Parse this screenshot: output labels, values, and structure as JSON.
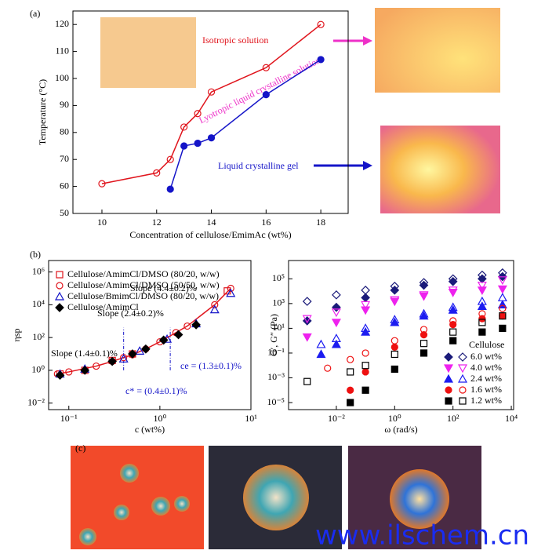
{
  "figure": {
    "panel_a": "(a)",
    "panel_b": "(b)",
    "panel_c": "(c)",
    "watermark": "www.ilschem.cn"
  },
  "chart_data": [
    {
      "type": "line",
      "xlabel": "Concentration of cellulose/EmimAc (wt%)",
      "ylabel": "Temperature (°C)",
      "xlim": [
        8.94,
        19
      ],
      "xticks": [
        10,
        12,
        14,
        16,
        18
      ],
      "ylim": [
        50,
        125
      ],
      "yticks": [
        50,
        60,
        70,
        80,
        90,
        100,
        110,
        120
      ],
      "annotations": [
        "Isotropic solution",
        "Lyotropic liquid crystalline solution",
        "Liquid crystalline gel"
      ],
      "series": [
        {
          "color": "#e0141c",
          "marker": "circle-open",
          "line": true,
          "x": [
            10,
            12,
            12.5,
            13,
            13.5,
            14,
            16,
            18
          ],
          "values": [
            61,
            65,
            70,
            82,
            87,
            95,
            104,
            120
          ]
        },
        {
          "color": "#1414c8",
          "marker": "circle",
          "line": true,
          "x": [
            12.5,
            13,
            13.5,
            14,
            16,
            18
          ],
          "values": [
            59,
            75,
            76,
            78,
            94,
            107
          ]
        }
      ]
    },
    {
      "type": "scatter",
      "log_x": true,
      "log_y": true,
      "xlabel": "c (wt%)",
      "ylabel": "ηsp",
      "xlim": [
        0.06,
        10
      ],
      "xticks": [
        {
          "value": 0.1,
          "label": "10⁻¹"
        },
        {
          "value": 1,
          "label": "10⁰"
        },
        {
          "value": 10,
          "label": "10¹"
        }
      ],
      "ylim": [
        0.004,
        5000000
      ],
      "yticks": [
        {
          "value": 0.01,
          "label": "10⁻²"
        },
        {
          "value": 1,
          "label": "10⁰"
        },
        {
          "value": 100,
          "label": "10²"
        },
        {
          "value": 10000,
          "label": "10⁴"
        },
        {
          "value": 1000000,
          "label": "10⁶"
        }
      ],
      "vlines": [
        0.4,
        1.3
      ],
      "annotations": [
        "Slope (1.4±0.1)%",
        "Slope (2.4±0.2)%",
        "Slope (4.4±0.2)%",
        "c* = (0.4±0.1)%",
        "ce = (1.3±0.1)%"
      ],
      "series": [
        {
          "name": "Cellulose/AmimCl/DMSO (80/20, w/w)",
          "color": "#e0141c",
          "marker": "square-open",
          "x": [
            0.08,
            0.15,
            0.3,
            0.5,
            5.5
          ],
          "values": [
            0.6,
            1,
            4,
            10,
            70000
          ]
        },
        {
          "name": "Cellulose/AmimCl/DMSO (50/50, w/w)",
          "color": "#e0141c",
          "marker": "circle-open",
          "line": true,
          "x": [
            0.075,
            0.1,
            0.2,
            0.3,
            0.4,
            0.5,
            0.7,
            1,
            1.5,
            2,
            4,
            6
          ],
          "values": [
            0.6,
            0.8,
            1.8,
            3.5,
            6,
            9,
            20,
            55,
            200,
            500,
            10000,
            100000
          ]
        },
        {
          "name": "Cellulose/BmimCl/DMSO (80/20, w/w)",
          "color": "#1414c8",
          "marker": "triangle-open",
          "x": [
            0.08,
            0.15,
            0.4,
            0.6,
            1.2,
            2.5,
            4,
            6
          ],
          "values": [
            0.6,
            1.2,
            5,
            15,
            80,
            700,
            5000,
            50000
          ]
        },
        {
          "name": "Cellulose/AmimCl",
          "color": "#000000",
          "marker": "diamond",
          "x": [
            0.08,
            0.15,
            0.3,
            0.5,
            0.7,
            1.1,
            1.6,
            2.5
          ],
          "values": [
            0.5,
            1,
            3.5,
            10,
            20,
            70,
            150,
            600
          ]
        }
      ]
    },
    {
      "type": "scatter",
      "log_x": true,
      "log_y": true,
      "xlabel": "ω (rad/s)",
      "ylabel": "G′, G″ (Pa)",
      "xlim": [
        0.00023,
        12000
      ],
      "xticks": [
        {
          "value": 0.01,
          "label": "10⁻²"
        },
        {
          "value": 1,
          "label": "10⁰"
        },
        {
          "value": 100,
          "label": "10²"
        },
        {
          "value": 10000,
          "label": "10⁴"
        }
      ],
      "ylim": [
        2.7e-06,
        3000000
      ],
      "yticks": [
        {
          "value": 1e-05,
          "label": "10⁻⁵"
        },
        {
          "value": 0.001,
          "label": "10⁻³"
        },
        {
          "value": 0.1,
          "label": "10⁻¹"
        },
        {
          "value": 10,
          "label": "10¹"
        },
        {
          "value": 1000,
          "label": "10³"
        },
        {
          "value": 100000,
          "label": "10⁵"
        }
      ],
      "legend_title": "Cellulose",
      "series": [
        {
          "name": "6.0 wt%",
          "color": "#1b1b7a",
          "marker": "diamond",
          "x": [
            0.001,
            0.01,
            0.1,
            1,
            10,
            100,
            1000,
            5000
          ],
          "values": [
            40,
            500,
            3000,
            12000,
            30000,
            60000,
            100000,
            150000
          ],
          "values_loss": [
            1500,
            5000,
            12000,
            25000,
            50000,
            100000,
            200000,
            300000
          ]
        },
        {
          "name": "4.0 wt%",
          "color": "#ee22ee",
          "marker": "triangle-down",
          "x": [
            0.001,
            0.01,
            0.1,
            1,
            10,
            100,
            1000,
            5000
          ],
          "values": [
            2,
            30,
            300,
            1500,
            4000,
            8000,
            12000,
            15000
          ],
          "values_loss": [
            60,
            200,
            800,
            2000,
            5000,
            12000,
            30000,
            80000
          ]
        },
        {
          "name": "2.4 wt%",
          "color": "#1c1cf0",
          "marker": "triangle",
          "x": [
            0.003,
            0.01,
            0.1,
            1,
            10,
            100,
            1000,
            5000
          ],
          "values": [
            0.08,
            0.5,
            5,
            30,
            100,
            300,
            600,
            800
          ],
          "values_loss": [
            0.5,
            1.5,
            10,
            50,
            150,
            500,
            1500,
            3000
          ]
        },
        {
          "name": "1.6 wt%",
          "color": "#ee1111",
          "marker": "circle",
          "x": [
            0.005,
            0.03,
            0.1,
            1,
            10,
            100,
            1000,
            5000
          ],
          "values": [
            null,
            0.0001,
            0.003,
            0.3,
            3,
            20,
            60,
            100
          ],
          "values_loss": [
            0.006,
            0.03,
            0.1,
            1,
            8,
            40,
            150,
            400
          ]
        },
        {
          "name": "1.2 wt%",
          "color": "#000000",
          "marker": "square",
          "x": [
            0.001,
            0.03,
            0.1,
            1,
            10,
            100,
            1000,
            5000
          ],
          "values": [
            null,
            1e-05,
            0.0001,
            0.005,
            0.1,
            1,
            5,
            10
          ],
          "values_loss": [
            0.0005,
            0.003,
            0.01,
            0.08,
            0.6,
            5,
            30,
            100
          ]
        }
      ]
    }
  ]
}
